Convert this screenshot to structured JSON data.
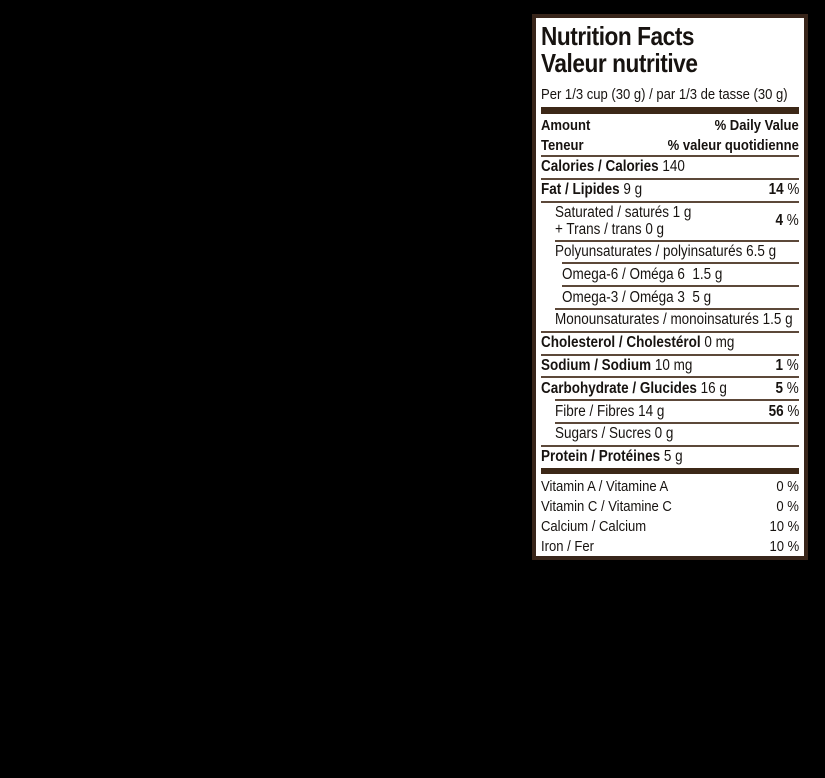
{
  "label": {
    "title_en": "Nutrition Facts",
    "title_fr": "Valeur nutritive",
    "serving": "Per 1/3 cup (30 g) / par 1/3 de tasse (30 g)",
    "header": {
      "amount_en": "Amount",
      "dv_en": "% Daily Value",
      "amount_fr": "Teneur",
      "dv_fr": "% valeur quotidienne"
    },
    "colors": {
      "background": "#000000",
      "paper": "#ffffff",
      "ink": "#171310",
      "frame": "#38251a",
      "bar": "#3c2817",
      "rule": "#5c4839"
    },
    "rows": [
      {
        "name": "calories",
        "bold": "Calories / Calories",
        "rest": "140",
        "value": "",
        "value_bold": false,
        "indent": 0,
        "rule": true,
        "rule_indent": 0
      },
      {
        "name": "fat",
        "bold": "Fat / Lipides",
        "rest": "9 g",
        "value": "14 %",
        "value_bold": true,
        "indent": 0,
        "rule": true,
        "rule_indent": 0
      },
      {
        "name": "saturated-trans",
        "lines": [
          "Saturated / saturés 1 g",
          "+ Trans / trans 0 g"
        ],
        "value": "4 %",
        "value_bold": true,
        "indent": 1,
        "rule": true,
        "rule_indent": 0
      },
      {
        "name": "polyunsaturates",
        "rest": "Polyunsaturates / polyinsaturés 6.5 g",
        "value": "",
        "value_bold": false,
        "indent": 1,
        "rule": true,
        "rule_indent": 1
      },
      {
        "name": "omega-6",
        "rest": "Omega-6 / Oméga 6  1.5 g",
        "value": "",
        "value_bold": false,
        "indent": 2,
        "rule": true,
        "rule_indent": 2
      },
      {
        "name": "omega-3",
        "rest": "Omega-3 / Oméga 3  5 g",
        "value": "",
        "value_bold": false,
        "indent": 2,
        "rule": true,
        "rule_indent": 2
      },
      {
        "name": "monounsaturates",
        "rest": "Monounsaturates / monoinsaturés 1.5 g",
        "value": "",
        "value_bold": false,
        "indent": 1,
        "rule": true,
        "rule_indent": 1
      },
      {
        "name": "cholesterol",
        "bold": "Cholesterol / Cholestérol",
        "rest": "0 mg",
        "value": "",
        "value_bold": false,
        "indent": 0,
        "rule": true,
        "rule_indent": 0
      },
      {
        "name": "sodium",
        "bold": "Sodium / Sodium",
        "rest": "10 mg",
        "value": "1 %",
        "value_bold": true,
        "indent": 0,
        "rule": true,
        "rule_indent": 0
      },
      {
        "name": "carbohydrate",
        "bold": "Carbohydrate / Glucides",
        "rest": "16 g",
        "value": "5 %",
        "value_bold": true,
        "indent": 0,
        "rule": true,
        "rule_indent": 0
      },
      {
        "name": "fibre",
        "rest": "Fibre / Fibres 14 g",
        "value": "56 %",
        "value_bold": true,
        "indent": 1,
        "rule": true,
        "rule_indent": 1
      },
      {
        "name": "sugars",
        "rest": "Sugars / Sucres 0 g",
        "value": "",
        "value_bold": false,
        "indent": 1,
        "rule": true,
        "rule_indent": 1
      },
      {
        "name": "protein",
        "bold": "Protein / Protéines",
        "rest": "5 g",
        "value": "",
        "value_bold": false,
        "indent": 0,
        "rule": true,
        "rule_indent": 0
      }
    ],
    "micronutrients": [
      {
        "name": "vitamin-a",
        "label": "Vitamin A / Vitamine A",
        "value": "0 %"
      },
      {
        "name": "vitamin-c",
        "label": "Vitamin C / Vitamine C",
        "value": "0 %"
      },
      {
        "name": "calcium",
        "label": "Calcium / Calcium",
        "value": "10 %"
      },
      {
        "name": "iron",
        "label": "Iron / Fer",
        "value": "10 %"
      }
    ]
  }
}
